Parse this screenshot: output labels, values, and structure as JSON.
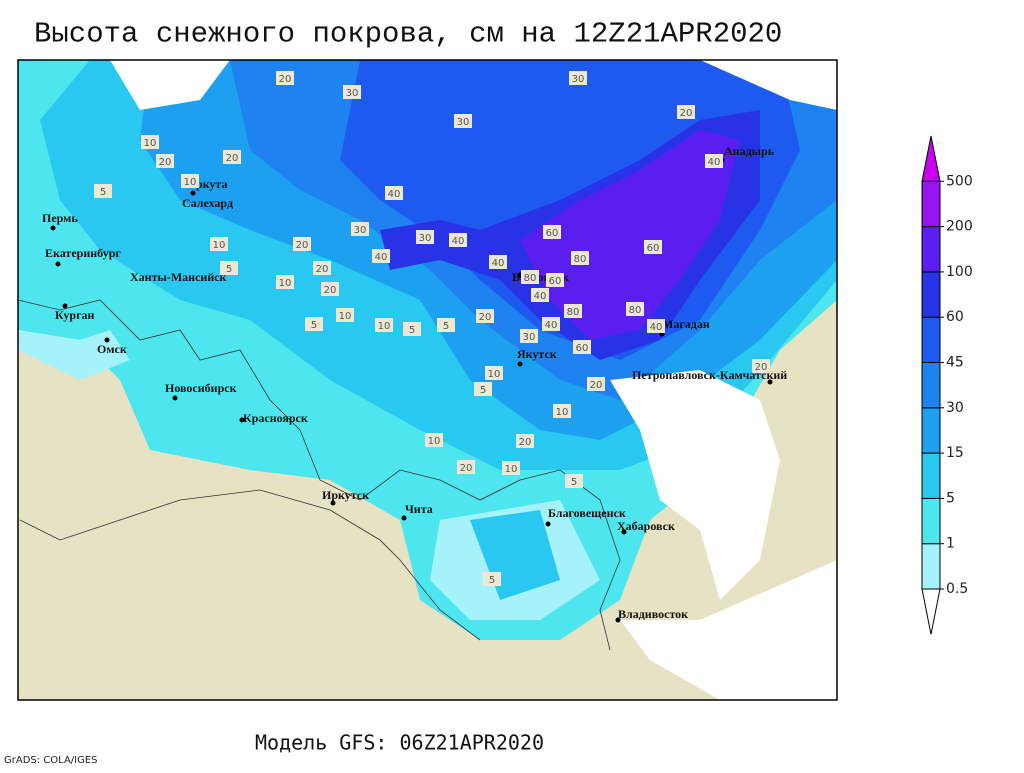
{
  "title": "Высота снежного покрова, см на 12Z21APR2020",
  "subtitle": "Модель GFS: 06Z21APR2020",
  "credit": "GrADS: COLA/IGES",
  "legend": {
    "levels": [
      0.5,
      1,
      5,
      15,
      30,
      45,
      60,
      100,
      200,
      500
    ],
    "colors": [
      "#ffffff",
      "#a6f2fa",
      "#4ee6ee",
      "#28c8f0",
      "#1ea0f0",
      "#1e82f0",
      "#1e5af0",
      "#2832e6",
      "#5a1ef0",
      "#9614f0",
      "#cc00f0"
    ]
  },
  "cities": [
    "Пермь",
    "Екатеринбург",
    "Курган",
    "Омск",
    "Новосибирск",
    "Красноярск",
    "Иркутск",
    "Чита",
    "Ханты-Мансийск",
    "Воркута",
    "Салехард",
    "Верхоянск",
    "Якутск",
    "Магадан",
    "Анадырь",
    "Петропавловск-Камчатский",
    "Благовещенск",
    "Хабаровск",
    "Владивосток"
  ],
  "contour_labels": [
    20,
    30,
    30,
    30,
    20,
    40,
    20,
    10,
    20,
    5,
    10,
    40,
    30,
    40,
    40,
    30,
    60,
    80,
    60,
    80,
    40,
    40,
    80,
    40,
    80,
    30,
    60,
    40,
    60,
    20,
    10,
    5,
    10,
    20,
    20,
    10,
    20,
    5,
    10,
    5,
    20,
    10,
    10,
    20,
    10,
    5,
    5,
    10,
    5,
    20,
    5,
    20
  ]
}
